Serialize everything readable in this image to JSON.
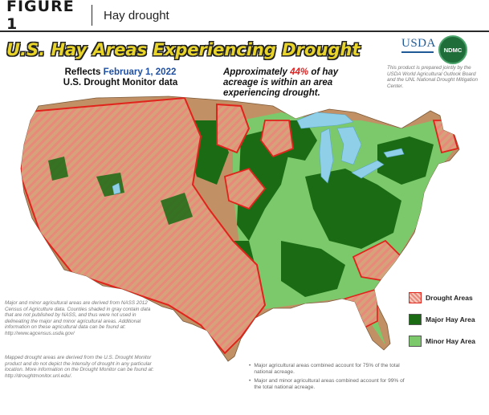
{
  "header": {
    "figure_label": "FIGURE 1",
    "title": "Hay drought"
  },
  "map_title": "U.S. Hay Areas Experiencing Drought",
  "reflects": {
    "line1_prefix": "Reflects",
    "date": "February 1, 2022",
    "line2": "U.S. Drought Monitor data"
  },
  "approx": {
    "prefix": "Approximately",
    "percent": "44%",
    "suffix": "of hay acreage is within an area experiencing drought."
  },
  "logos": {
    "usda": "USDA",
    "ndmc": "NDMC"
  },
  "credit": "This product is prepared jointly by the USDA World Agricultural Outlook Board and the UNL National Drought Mitigation Center.",
  "legend": [
    {
      "label": "Drought Areas",
      "key": "drought"
    },
    {
      "label": "Major Hay Area",
      "key": "major"
    },
    {
      "label": "Minor Hay Area",
      "key": "minor"
    }
  ],
  "colors": {
    "major": "#1a6b14",
    "minor": "#7cc96c",
    "drought_stripe": "#e89a8c",
    "drought_border": "#e0241b",
    "non_ag": "#c19064",
    "water": "#8fcfe8",
    "title_yellow": "#e8d42a"
  },
  "notes": {
    "ag_sources": "Major and minor agricultural areas are derived from NASS 2012 Census of Agriculture data. Counties shaded in gray contain data that are not published by NASS, and thus were not used in delineating the major and minor agricultural areas. Additional information on these agricultural data can be found at: http://www.agcensus.usda.gov/",
    "drought_sources": "Mapped drought areas are derived from the U.S. Drought Monitor product and do not depict the intensity of drought in any particular location. More information on the Drought Monitor can be found at: http://droughtmonitor.unl.edu/."
  },
  "bullets": [
    "Major agricultural areas combined account for 75% of the total national acreage.",
    "Major and minor agricultural areas combined account for 99% of the total national acreage."
  ]
}
